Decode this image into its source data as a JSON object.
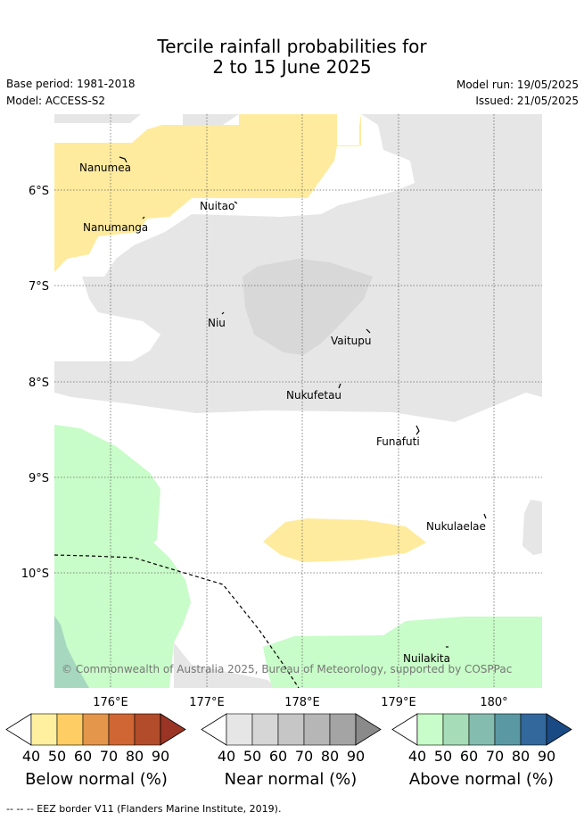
{
  "title_line1": "Tercile rainfall probabilities for",
  "title_line2": "2 to 15 June 2025",
  "base_period": "Base period: 1981-2018",
  "model": "Model: ACCESS-S2",
  "model_run": "Model run: 19/05/2025",
  "issued": "Issued: 21/05/2025",
  "copyright": "© Commonwealth of Australia 2025, Bureau of Meteorology, supported by COSPPac",
  "lon_labels": [
    "176°E",
    "177°E",
    "178°E",
    "179°E",
    "180°"
  ],
  "lat_labels": [
    "6°S",
    "7°S",
    "8°S",
    "9°S",
    "10°S"
  ],
  "places": [
    "Nanumea",
    "Nuitao",
    "Nanumanga",
    "Niu",
    "Vaitupu",
    "Nukufetau",
    "Funafuti",
    "Nukulaelae",
    "Nuilakita"
  ],
  "colorbars": [
    {
      "label": "Below normal (%)",
      "ticks": [
        "40",
        "50",
        "60",
        "70",
        "80",
        "90"
      ],
      "colors": [
        "#fff0a0",
        "#fece64",
        "#e4964a",
        "#cf6634",
        "#b24c2a",
        "#9a3424"
      ]
    },
    {
      "label": "Near normal (%)",
      "ticks": [
        "40",
        "50",
        "60",
        "70",
        "80",
        "90"
      ],
      "colors": [
        "#e6e6e6",
        "#d6d6d6",
        "#c6c6c6",
        "#b6b6b6",
        "#a4a4a4",
        "#8a8a8a"
      ]
    },
    {
      "label": "Above normal (%)",
      "ticks": [
        "40",
        "50",
        "60",
        "70",
        "80",
        "90"
      ],
      "colors": [
        "#c8fcc8",
        "#a6dcb8",
        "#84bcb0",
        "#5a98a4",
        "#32689c",
        "#1a4a84"
      ]
    }
  ],
  "legend_footer": "--  --  -- EEZ border V11 (Flanders Marine Institute, 2019).",
  "colors": {
    "below": "#feeb9d",
    "near": "#e6e6e6",
    "near_dark": "#d8d8d8",
    "above": "#c8fcc8",
    "above_dark": "#a6d8c0"
  }
}
